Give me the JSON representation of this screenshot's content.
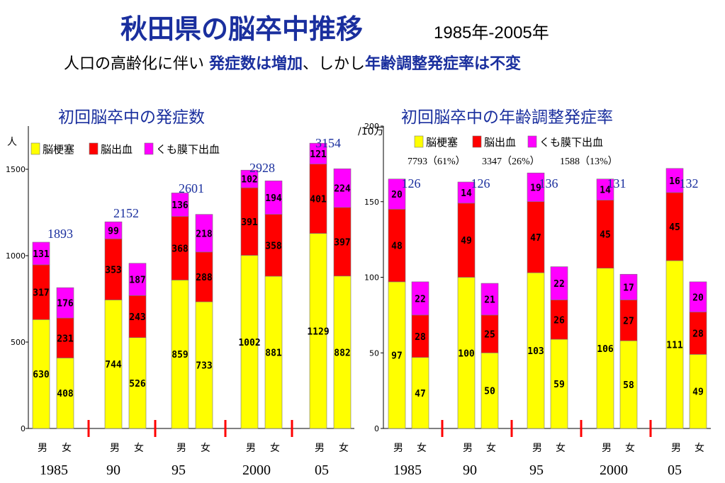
{
  "header": {
    "title": "秋田県の脳卒中推移",
    "years": "1985年-2005年",
    "subtitle_plain1": "人口の高齢化に伴い ",
    "subtitle_em1": "発症数は増加",
    "subtitle_plain2": "、しかし",
    "subtitle_em2": "年齢調整発症率は不変"
  },
  "colors": {
    "infarction": "#ffff00",
    "hemorrhage": "#ff0000",
    "sah": "#ff00ff",
    "title": "#1a2f9e"
  },
  "chart_data": [
    {
      "type": "bar",
      "stacked": true,
      "title": "初回脳卒中の発症数",
      "ylabel": "人",
      "ylim": [
        0,
        1750
      ],
      "yticks": [
        0,
        500,
        1000,
        1500
      ],
      "legend": [
        "脳梗塞",
        "脳出血",
        "くも膜下出血"
      ],
      "legend_position": "top-left",
      "groups": [
        "1985",
        "90",
        "95",
        "2000",
        "05"
      ],
      "sex_labels": [
        "男",
        "女"
      ],
      "totals": [
        "1893",
        "2152",
        "2601",
        "2928",
        "3154"
      ],
      "series": [
        {
          "name": "脳梗塞",
          "values": [
            630,
            408,
            744,
            526,
            859,
            733,
            1002,
            881,
            1129,
            882
          ]
        },
        {
          "name": "脳出血",
          "values": [
            317,
            231,
            353,
            243,
            368,
            288,
            391,
            358,
            401,
            397
          ]
        },
        {
          "name": "くも膜下出血",
          "values": [
            131,
            176,
            99,
            187,
            136,
            218,
            102,
            194,
            121,
            224
          ]
        }
      ]
    },
    {
      "type": "bar",
      "stacked": true,
      "title": "初回脳卒中の年齢調整発症率",
      "ylabel": "/10万",
      "ylim": [
        0,
        200
      ],
      "yticks": [
        0,
        50,
        100,
        150,
        200
      ],
      "legend": [
        "脳梗塞",
        "脳出血",
        "くも膜下出血"
      ],
      "legend_notes": [
        "7793（61%）",
        "3347（26%）",
        "1588（13%）"
      ],
      "legend_position": "top",
      "groups": [
        "1985",
        "90",
        "95",
        "2000",
        "05"
      ],
      "sex_labels": [
        "男",
        "女"
      ],
      "totals": [
        "126",
        "126",
        "136",
        "131",
        "132"
      ],
      "series": [
        {
          "name": "脳梗塞",
          "values": [
            97,
            47,
            100,
            50,
            103,
            59,
            106,
            58,
            111,
            49
          ]
        },
        {
          "name": "脳出血",
          "values": [
            48,
            28,
            49,
            25,
            47,
            26,
            45,
            27,
            45,
            28
          ]
        },
        {
          "name": "くも膜下出血",
          "values": [
            20,
            22,
            14,
            21,
            19,
            22,
            14,
            17,
            16,
            20
          ]
        }
      ]
    }
  ]
}
